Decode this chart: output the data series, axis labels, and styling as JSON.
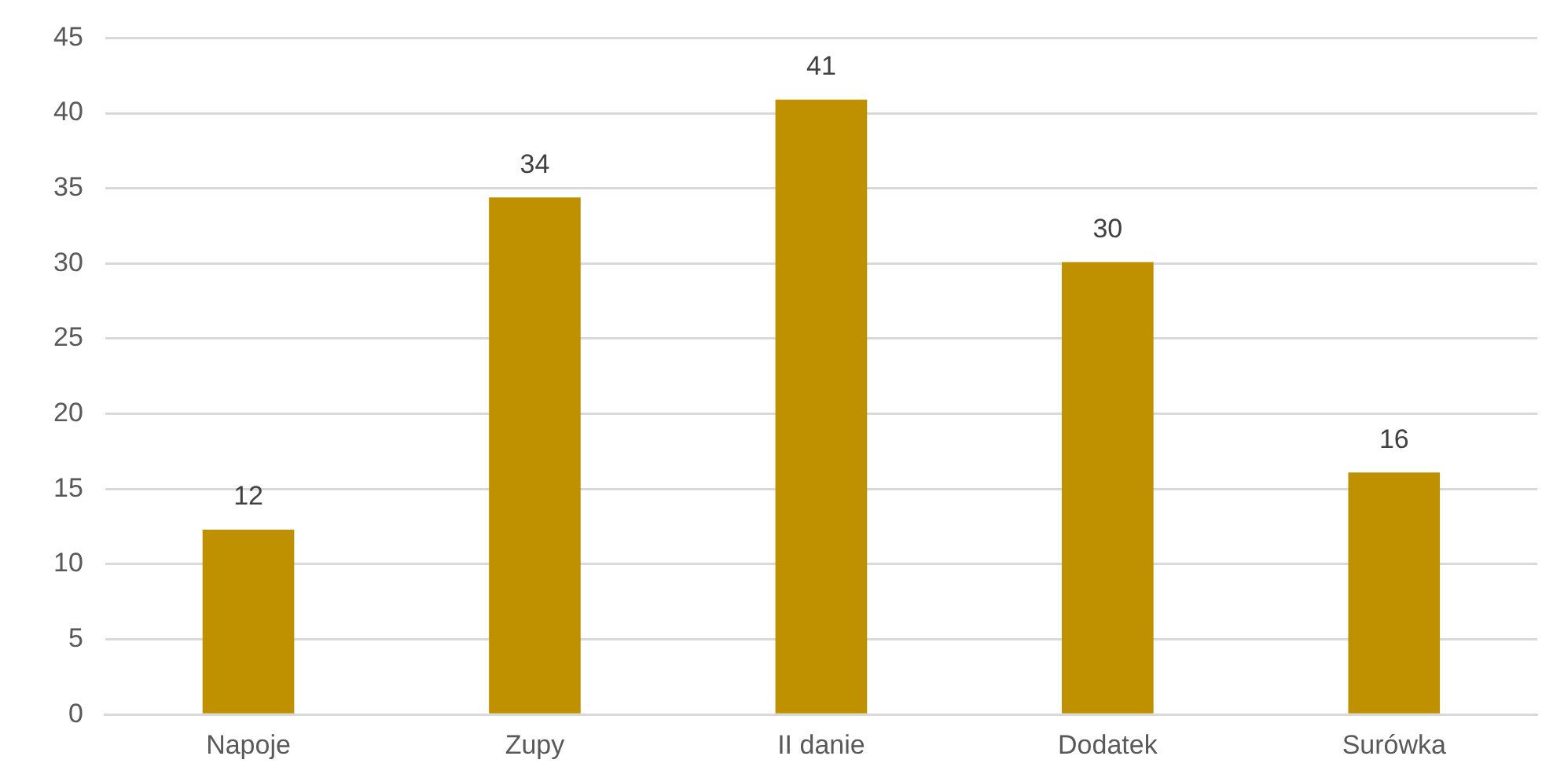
{
  "chart_data": {
    "type": "bar",
    "categories": [
      "Napoje",
      "Zupy",
      "II danie",
      "Dodatek",
      "Surówka"
    ],
    "values": [
      12.3,
      34.4,
      40.9,
      30.1,
      16.1
    ],
    "value_labels": [
      "12",
      "34",
      "41",
      "30",
      "16"
    ],
    "color": "#bf9000",
    "ylim": [
      0,
      45
    ],
    "yticks": [
      0,
      5,
      10,
      15,
      20,
      25,
      30,
      35,
      40,
      45
    ],
    "grid": "y",
    "legend": false
  }
}
